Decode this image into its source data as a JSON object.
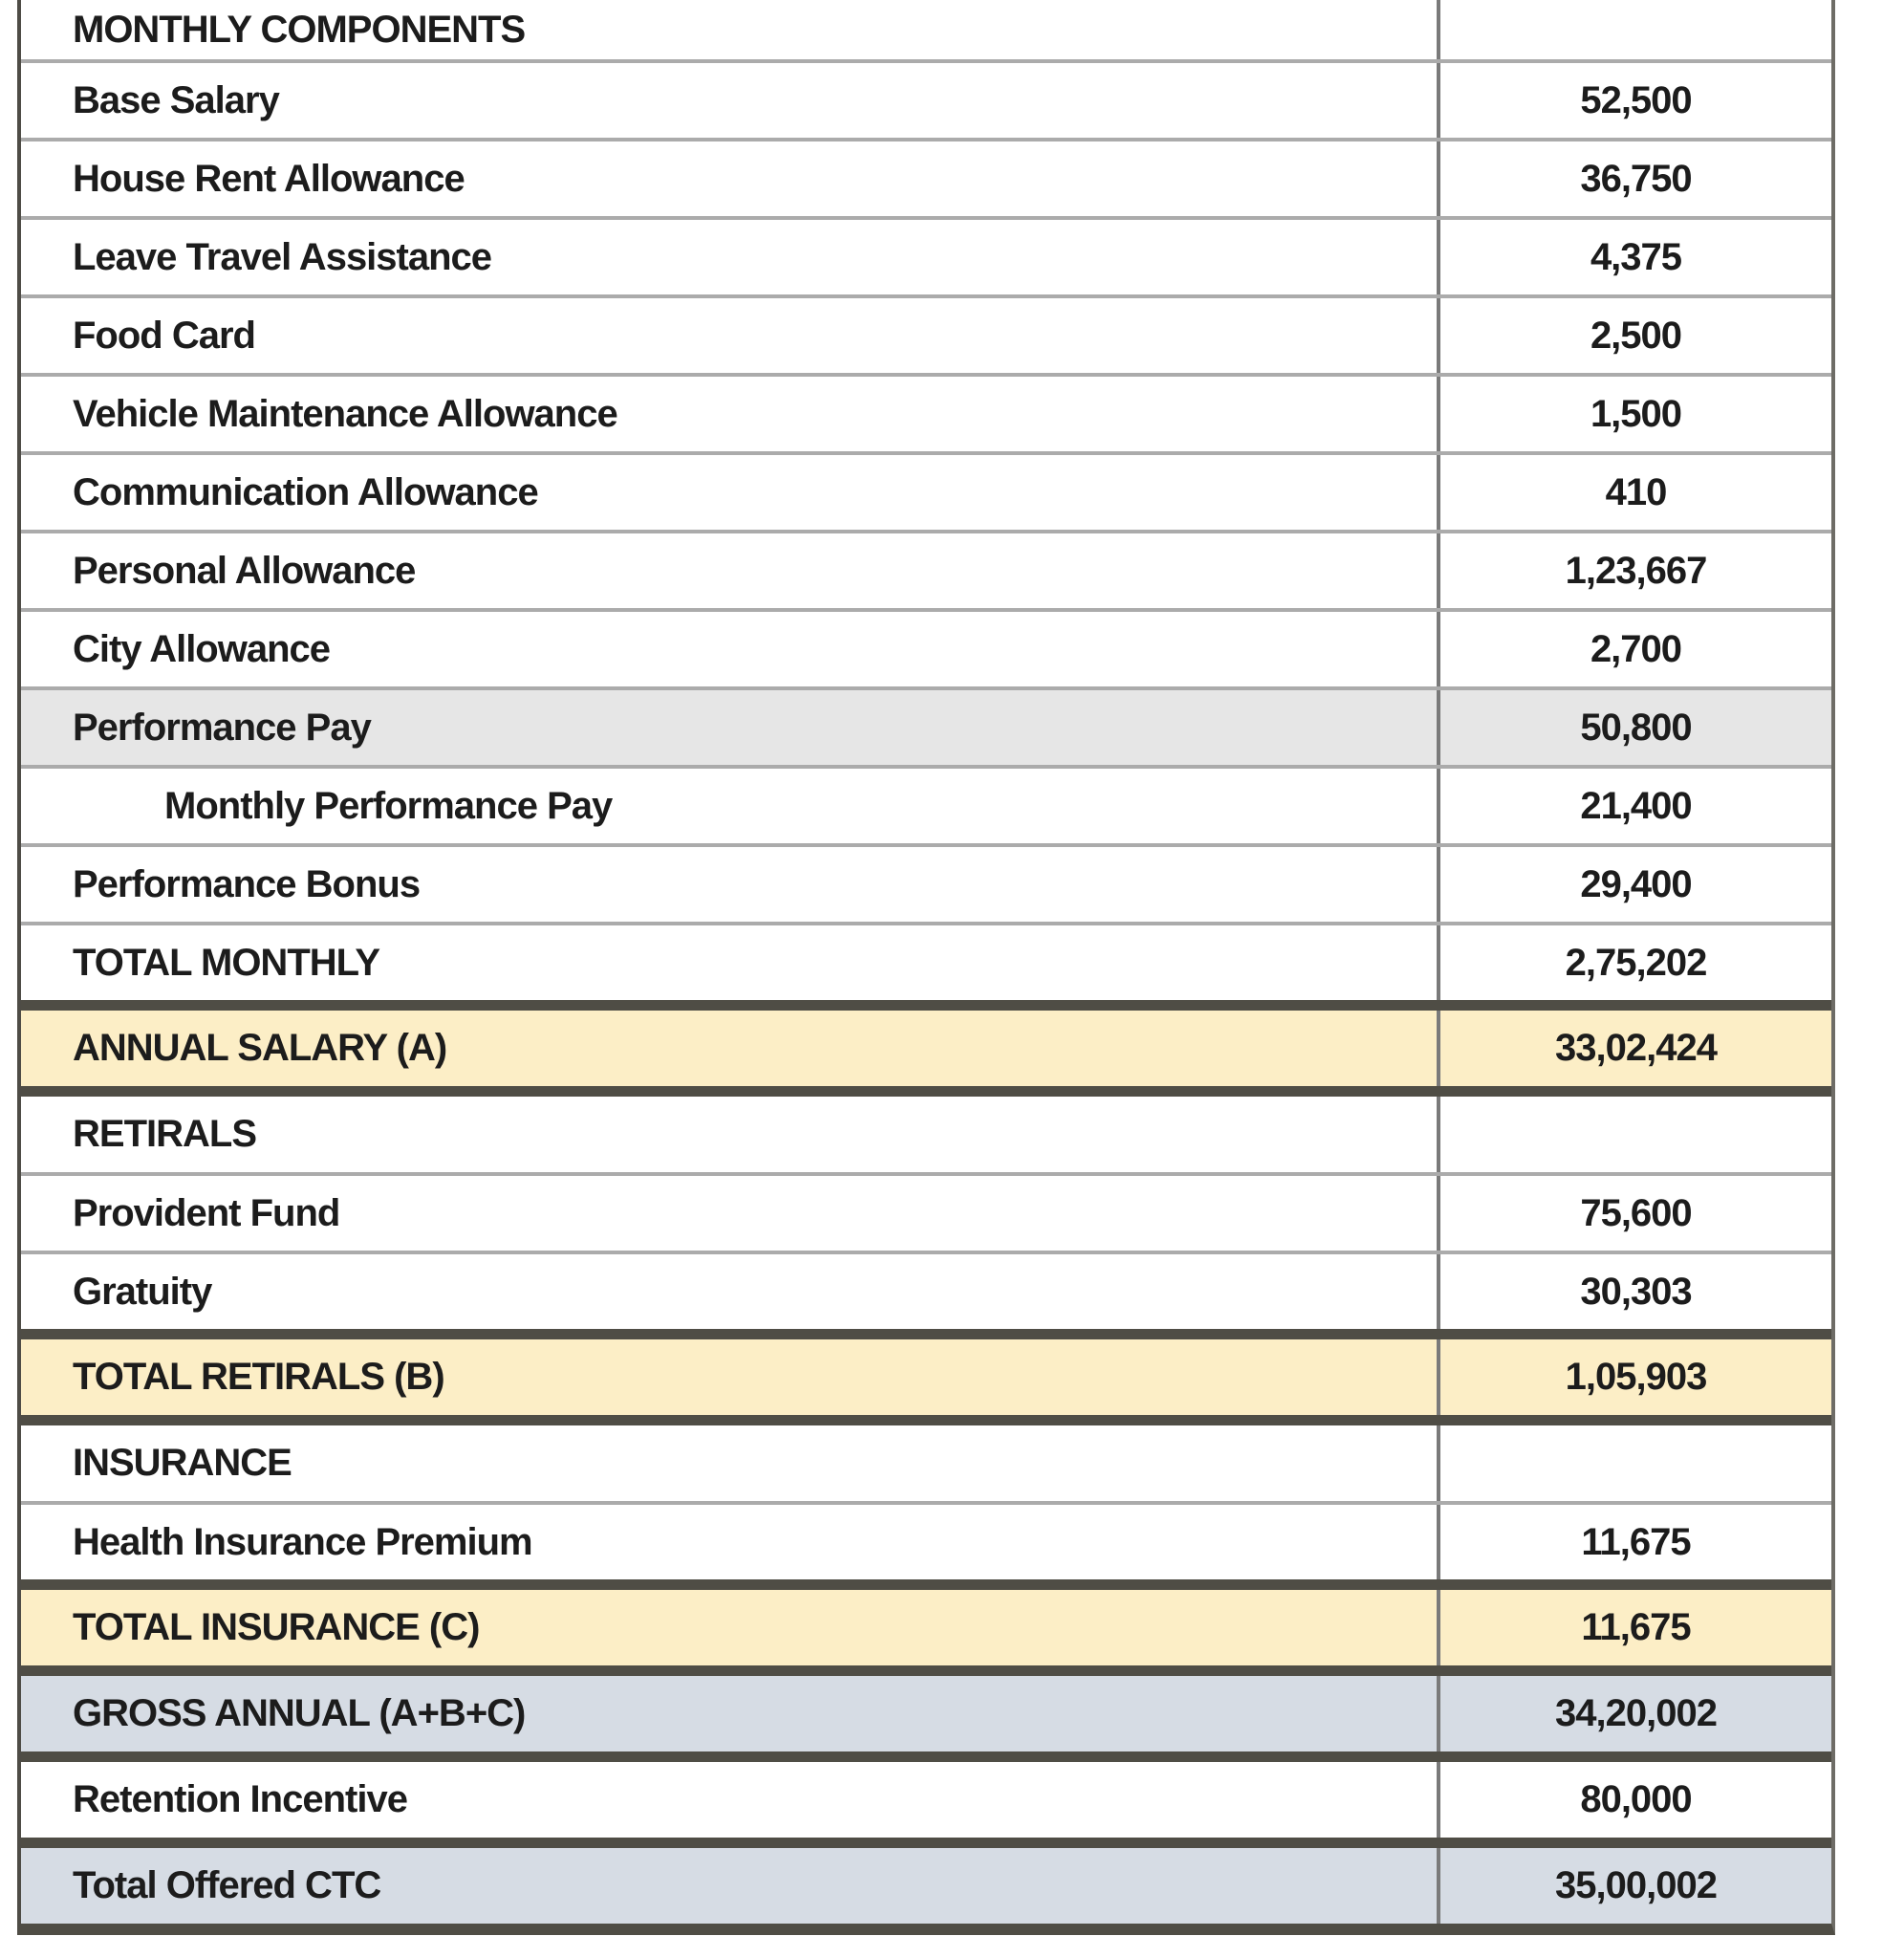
{
  "document": {
    "kind": "salary-structure-table",
    "columns": {
      "label": "component",
      "value": "amount"
    },
    "colors": {
      "highlight_cream": "#fceec6",
      "highlight_gray": "#e6e6e6",
      "highlight_blue_gray": "#d6dce4",
      "border_thick": "#4f4d45",
      "border_thin": "#ababab",
      "text": "#1c1c1c"
    },
    "rows": [
      {
        "label": "MONTHLY COMPONENTS",
        "value": "",
        "variant": "section-header",
        "first": true
      },
      {
        "label": "Base Salary",
        "value": "52,500",
        "variant": "item"
      },
      {
        "label": "House Rent Allowance",
        "value": "36,750",
        "variant": "item"
      },
      {
        "label": "Leave Travel Assistance",
        "value": "4,375",
        "variant": "item"
      },
      {
        "label": "Food Card",
        "value": "2,500",
        "variant": "item"
      },
      {
        "label": "Vehicle Maintenance Allowance",
        "value": "1,500",
        "variant": "item"
      },
      {
        "label": "Communication Allowance",
        "value": "410",
        "variant": "item"
      },
      {
        "label": "Personal Allowance",
        "value": "1,23,667",
        "variant": "item"
      },
      {
        "label": "City Allowance",
        "value": "2,700",
        "variant": "item"
      },
      {
        "label": "Performance Pay",
        "value": "50,800",
        "variant": "item-gray"
      },
      {
        "label": "Monthly Performance Pay",
        "value": "21,400",
        "variant": "item-indent"
      },
      {
        "label": "Performance Bonus",
        "value": "29,400",
        "variant": "item"
      },
      {
        "label": "TOTAL MONTHLY",
        "value": "2,75,202",
        "variant": "total-plain"
      },
      {
        "label": "ANNUAL SALARY (A)",
        "value": "33,02,424",
        "variant": "total-cream",
        "thick_top": true
      },
      {
        "label": "RETIRALS",
        "value": "",
        "variant": "section-header",
        "thick_top": true
      },
      {
        "label": "Provident Fund",
        "value": "75,600",
        "variant": "item"
      },
      {
        "label": "Gratuity",
        "value": "30,303",
        "variant": "item"
      },
      {
        "label": "TOTAL RETIRALS (B)",
        "value": "1,05,903",
        "variant": "total-cream",
        "thick_top": true
      },
      {
        "label": "INSURANCE",
        "value": "",
        "variant": "section-header",
        "thick_top": true
      },
      {
        "label": "Health Insurance Premium",
        "value": "11,675",
        "variant": "item"
      },
      {
        "label": "TOTAL INSURANCE (C)",
        "value": "11,675",
        "variant": "total-cream",
        "thick_top": true
      },
      {
        "label": "GROSS ANNUAL (A+B+C)",
        "value": "34,20,002",
        "variant": "total-blue",
        "thick_top": true
      },
      {
        "label": "Retention Incentive",
        "value": "80,000",
        "variant": "item",
        "thick_top": true
      },
      {
        "label": "Total Offered CTC",
        "value": "35,00,002",
        "variant": "total-blue",
        "thick_top": true
      }
    ]
  }
}
